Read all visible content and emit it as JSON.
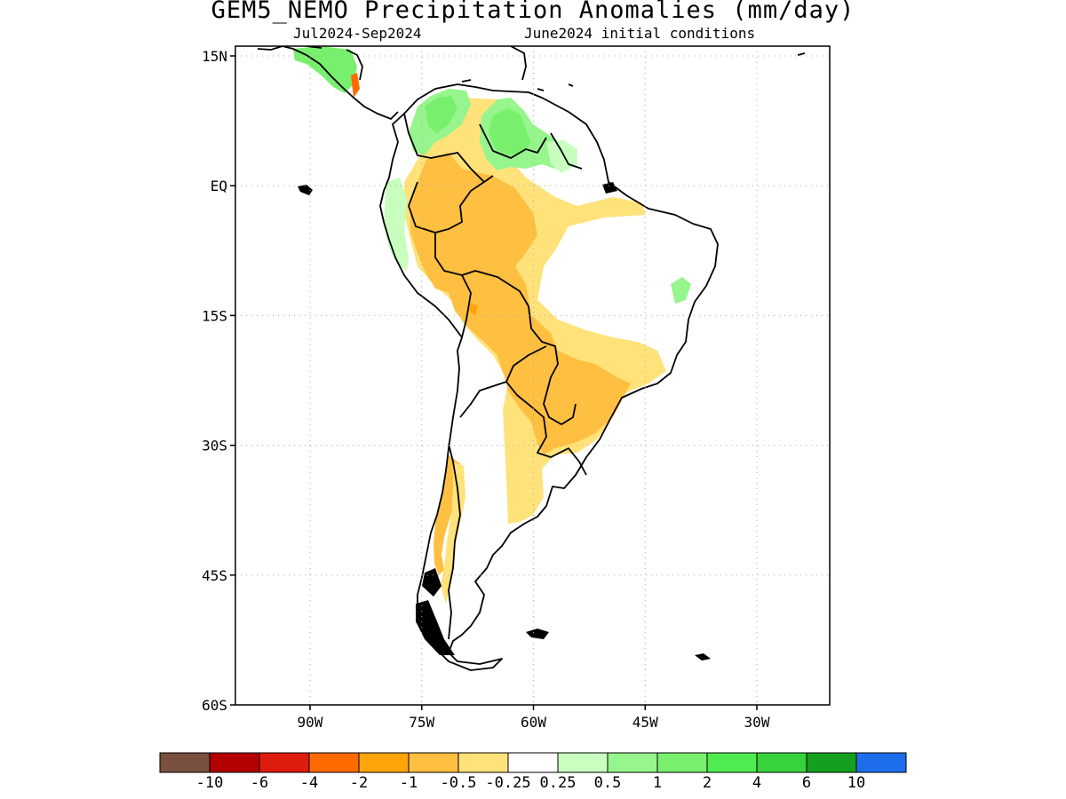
{
  "title": "GEM5_NEMO Precipitation Anomalies (mm/day)",
  "subtitle_left": "Jul2024-Sep2024",
  "subtitle_right": "June2024 initial conditions",
  "axes": {
    "lat_ticks": [
      "15N",
      "EQ",
      "15S",
      "30S",
      "45S",
      "60S"
    ],
    "lon_ticks": [
      "90W",
      "75W",
      "60W",
      "45W",
      "30W"
    ],
    "lat_values": [
      15,
      0,
      -15,
      -30,
      -45,
      -60
    ],
    "lon_values": [
      -90,
      -75,
      -60,
      -45,
      -30
    ],
    "lat_range": [
      -60,
      16
    ],
    "lon_range": [
      -100,
      -20
    ],
    "grid": true
  },
  "colorbar": {
    "colors": [
      "#7a5040",
      "#b40000",
      "#de1c0e",
      "#ff6a00",
      "#ffa50a",
      "#ffbf40",
      "#ffe27a",
      "#ffffff",
      "#c8ffbe",
      "#96f58c",
      "#78f06e",
      "#50eb50",
      "#37d23c",
      "#14a01e",
      "#1e6eeb"
    ],
    "labels": [
      "-10",
      "-6",
      "-4",
      "-2",
      "-1",
      "-0.5",
      "-0.25",
      "0.25",
      "0.5",
      "1",
      "2",
      "4",
      "6",
      "10"
    ]
  }
}
